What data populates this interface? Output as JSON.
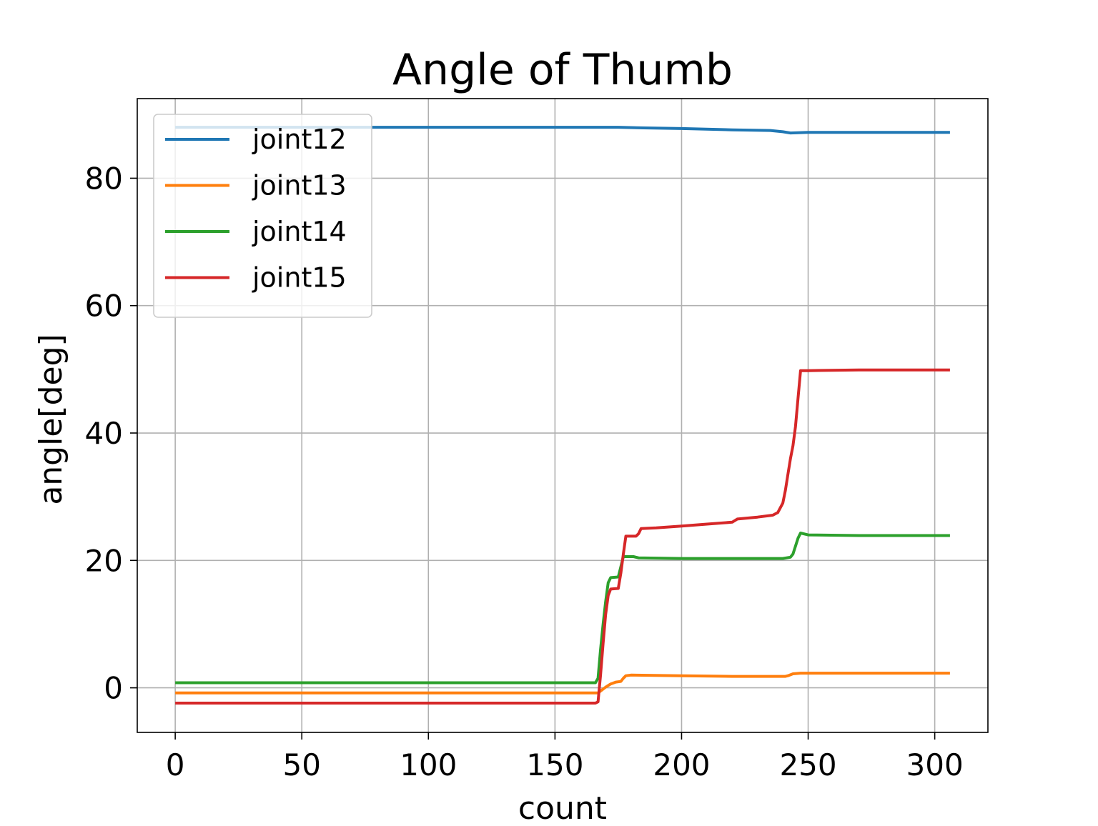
{
  "chart_data": {
    "type": "line",
    "title": "Angle of Thumb",
    "xlabel": "count",
    "ylabel": "angle[deg]",
    "xlim": [
      -15,
      321
    ],
    "ylim": [
      -7,
      92.5
    ],
    "xticks": [
      0,
      50,
      100,
      150,
      200,
      250,
      300
    ],
    "yticks": [
      0,
      20,
      40,
      60,
      80
    ],
    "grid": true,
    "legend_position": "upper-left",
    "series": [
      {
        "name": "joint12",
        "color": "#1f77b4",
        "points": [
          [
            0,
            88.0
          ],
          [
            100,
            88.0
          ],
          [
            168,
            88.0
          ],
          [
            175,
            88.0
          ],
          [
            185,
            87.9
          ],
          [
            200,
            87.8
          ],
          [
            220,
            87.6
          ],
          [
            235,
            87.5
          ],
          [
            240,
            87.3
          ],
          [
            243,
            87.1
          ],
          [
            250,
            87.2
          ],
          [
            270,
            87.2
          ],
          [
            306,
            87.2
          ]
        ]
      },
      {
        "name": "joint13",
        "color": "#ff7f0e",
        "points": [
          [
            0,
            -0.8
          ],
          [
            166,
            -0.8
          ],
          [
            167,
            -0.8
          ],
          [
            168,
            -0.5
          ],
          [
            170,
            0.1
          ],
          [
            172,
            0.6
          ],
          [
            174,
            0.9
          ],
          [
            176,
            1.0
          ],
          [
            177,
            1.5
          ],
          [
            178,
            1.9
          ],
          [
            180,
            2.0
          ],
          [
            200,
            1.9
          ],
          [
            220,
            1.8
          ],
          [
            241,
            1.8
          ],
          [
            242,
            1.9
          ],
          [
            244,
            2.2
          ],
          [
            247,
            2.3
          ],
          [
            270,
            2.3
          ],
          [
            306,
            2.3
          ]
        ]
      },
      {
        "name": "joint14",
        "color": "#2ca02c",
        "points": [
          [
            0,
            0.8
          ],
          [
            166,
            0.8
          ],
          [
            167,
            1.5
          ],
          [
            168,
            6.0
          ],
          [
            169,
            10.0
          ],
          [
            170,
            13.5
          ],
          [
            171,
            16.5
          ],
          [
            172,
            17.3
          ],
          [
            175,
            17.4
          ],
          [
            176,
            19.0
          ],
          [
            177,
            20.6
          ],
          [
            181,
            20.6
          ],
          [
            183,
            20.4
          ],
          [
            200,
            20.3
          ],
          [
            220,
            20.3
          ],
          [
            240,
            20.3
          ],
          [
            243,
            20.5
          ],
          [
            244,
            21.0
          ],
          [
            246,
            23.5
          ],
          [
            247,
            24.3
          ],
          [
            250,
            24.0
          ],
          [
            270,
            23.9
          ],
          [
            306,
            23.9
          ]
        ]
      },
      {
        "name": "joint15",
        "color": "#d62728",
        "points": [
          [
            0,
            -2.4
          ],
          [
            166,
            -2.4
          ],
          [
            167,
            -2.2
          ],
          [
            168,
            2.0
          ],
          [
            169,
            7.0
          ],
          [
            170,
            11.5
          ],
          [
            171,
            14.5
          ],
          [
            172,
            15.5
          ],
          [
            175,
            15.6
          ],
          [
            176,
            18.0
          ],
          [
            177,
            21.0
          ],
          [
            178,
            23.8
          ],
          [
            182,
            23.8
          ],
          [
            183,
            24.2
          ],
          [
            184,
            25.0
          ],
          [
            190,
            25.1
          ],
          [
            200,
            25.4
          ],
          [
            210,
            25.7
          ],
          [
            220,
            26.0
          ],
          [
            222,
            26.5
          ],
          [
            230,
            26.8
          ],
          [
            236,
            27.1
          ],
          [
            238,
            27.5
          ],
          [
            240,
            29.0
          ],
          [
            241,
            31.0
          ],
          [
            242,
            33.5
          ],
          [
            243,
            36.0
          ],
          [
            244,
            38.0
          ],
          [
            245,
            41.0
          ],
          [
            246,
            45.5
          ],
          [
            247,
            49.8
          ],
          [
            250,
            49.8
          ],
          [
            270,
            49.9
          ],
          [
            306,
            49.9
          ]
        ]
      }
    ]
  }
}
